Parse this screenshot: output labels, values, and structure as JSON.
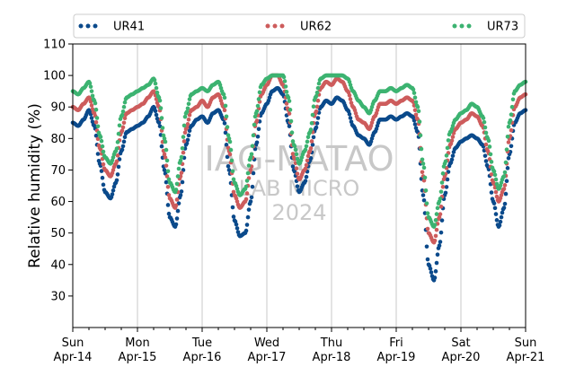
{
  "chart_data": {
    "type": "scatter",
    "title": "",
    "xlabel": "",
    "ylabel": "Relative humidity (%)",
    "ylim": [
      20,
      110
    ],
    "yticks": [
      30,
      40,
      50,
      60,
      70,
      80,
      90,
      100,
      110
    ],
    "xlim": [
      "2024-04-14",
      "2024-04-21"
    ],
    "xticks": [
      {
        "day": "Sun",
        "date": "Apr-14"
      },
      {
        "day": "Mon",
        "date": "Apr-15"
      },
      {
        "day": "Tue",
        "date": "Apr-16"
      },
      {
        "day": "Wed",
        "date": "Apr-17"
      },
      {
        "day": "Thu",
        "date": "Apr-18"
      },
      {
        "day": "Fri",
        "date": "Apr-19"
      },
      {
        "day": "Sat",
        "date": "Apr-20"
      },
      {
        "day": "Sun",
        "date": "Apr-21"
      }
    ],
    "grid": "vertical",
    "legend": "top",
    "watermark": [
      "IAG-MATAO",
      "LAB MICRO",
      "2024"
    ],
    "series": [
      {
        "name": "UR41",
        "color": "#0b4a8b",
        "points": [
          [
            "2024-04-14 00:00",
            85
          ],
          [
            "2024-04-14 02:00",
            84
          ],
          [
            "2024-04-14 04:00",
            86
          ],
          [
            "2024-04-14 06:00",
            89
          ],
          [
            "2024-04-14 08:00",
            84
          ],
          [
            "2024-04-14 10:00",
            72
          ],
          [
            "2024-04-14 12:00",
            63
          ],
          [
            "2024-04-14 14:00",
            61
          ],
          [
            "2024-04-14 16:00",
            66
          ],
          [
            "2024-04-14 18:00",
            76
          ],
          [
            "2024-04-14 20:00",
            82
          ],
          [
            "2024-04-14 22:00",
            83
          ],
          [
            "2024-04-15 00:00",
            84
          ],
          [
            "2024-04-15 02:00",
            85
          ],
          [
            "2024-04-15 04:00",
            87
          ],
          [
            "2024-04-15 06:00",
            90
          ],
          [
            "2024-04-15 08:00",
            85
          ],
          [
            "2024-04-15 10:00",
            70
          ],
          [
            "2024-04-15 12:00",
            55
          ],
          [
            "2024-04-15 14:00",
            52
          ],
          [
            "2024-04-15 16:00",
            62
          ],
          [
            "2024-04-15 18:00",
            78
          ],
          [
            "2024-04-15 20:00",
            84
          ],
          [
            "2024-04-15 22:00",
            86
          ],
          [
            "2024-04-16 00:00",
            87
          ],
          [
            "2024-04-16 02:00",
            85
          ],
          [
            "2024-04-16 04:00",
            88
          ],
          [
            "2024-04-16 06:00",
            89
          ],
          [
            "2024-04-16 08:00",
            86
          ],
          [
            "2024-04-16 10:00",
            70
          ],
          [
            "2024-04-16 12:00",
            54
          ],
          [
            "2024-04-16 14:00",
            49
          ],
          [
            "2024-04-16 16:00",
            50
          ],
          [
            "2024-04-16 18:00",
            60
          ],
          [
            "2024-04-16 20:00",
            78
          ],
          [
            "2024-04-16 22:00",
            88
          ],
          [
            "2024-04-17 00:00",
            91
          ],
          [
            "2024-04-17 02:00",
            95
          ],
          [
            "2024-04-17 04:00",
            96
          ],
          [
            "2024-04-17 06:00",
            94
          ],
          [
            "2024-04-17 08:00",
            85
          ],
          [
            "2024-04-17 10:00",
            70
          ],
          [
            "2024-04-17 12:00",
            63
          ],
          [
            "2024-04-17 14:00",
            66
          ],
          [
            "2024-04-17 16:00",
            73
          ],
          [
            "2024-04-17 18:00",
            83
          ],
          [
            "2024-04-17 20:00",
            90
          ],
          [
            "2024-04-17 22:00",
            92
          ],
          [
            "2024-04-18 00:00",
            91
          ],
          [
            "2024-04-18 02:00",
            93
          ],
          [
            "2024-04-18 04:00",
            92
          ],
          [
            "2024-04-18 06:00",
            89
          ],
          [
            "2024-04-18 08:00",
            84
          ],
          [
            "2024-04-18 10:00",
            81
          ],
          [
            "2024-04-18 12:00",
            80
          ],
          [
            "2024-04-18 14:00",
            78
          ],
          [
            "2024-04-18 16:00",
            82
          ],
          [
            "2024-04-18 18:00",
            86
          ],
          [
            "2024-04-18 20:00",
            86
          ],
          [
            "2024-04-18 22:00",
            87
          ],
          [
            "2024-04-19 00:00",
            86
          ],
          [
            "2024-04-19 02:00",
            87
          ],
          [
            "2024-04-19 04:00",
            88
          ],
          [
            "2024-04-19 06:00",
            87
          ],
          [
            "2024-04-19 08:00",
            82
          ],
          [
            "2024-04-19 10:00",
            62
          ],
          [
            "2024-04-19 12:00",
            40
          ],
          [
            "2024-04-19 14:00",
            35
          ],
          [
            "2024-04-19 16:00",
            46
          ],
          [
            "2024-04-19 18:00",
            62
          ],
          [
            "2024-04-19 20:00",
            72
          ],
          [
            "2024-04-19 22:00",
            77
          ],
          [
            "2024-04-20 00:00",
            79
          ],
          [
            "2024-04-20 02:00",
            80
          ],
          [
            "2024-04-20 04:00",
            81
          ],
          [
            "2024-04-20 06:00",
            80
          ],
          [
            "2024-04-20 08:00",
            78
          ],
          [
            "2024-04-20 10:00",
            71
          ],
          [
            "2024-04-20 12:00",
            60
          ],
          [
            "2024-04-20 14:00",
            52
          ],
          [
            "2024-04-20 16:00",
            58
          ],
          [
            "2024-04-20 18:00",
            75
          ],
          [
            "2024-04-20 20:00",
            85
          ],
          [
            "2024-04-20 22:00",
            88
          ],
          [
            "2024-04-21 00:00",
            89
          ]
        ]
      },
      {
        "name": "UR62",
        "color": "#cd5c5c",
        "points": [
          [
            "2024-04-14 00:00",
            90
          ],
          [
            "2024-04-14 02:00",
            89
          ],
          [
            "2024-04-14 04:00",
            91
          ],
          [
            "2024-04-14 06:00",
            93
          ],
          [
            "2024-04-14 08:00",
            88
          ],
          [
            "2024-04-14 10:00",
            77
          ],
          [
            "2024-04-14 12:00",
            70
          ],
          [
            "2024-04-14 14:00",
            68
          ],
          [
            "2024-04-14 16:00",
            72
          ],
          [
            "2024-04-14 18:00",
            82
          ],
          [
            "2024-04-14 20:00",
            88
          ],
          [
            "2024-04-14 22:00",
            89
          ],
          [
            "2024-04-15 00:00",
            90
          ],
          [
            "2024-04-15 02:00",
            91
          ],
          [
            "2024-04-15 04:00",
            93
          ],
          [
            "2024-04-15 06:00",
            95
          ],
          [
            "2024-04-15 08:00",
            90
          ],
          [
            "2024-04-15 10:00",
            75
          ],
          [
            "2024-04-15 12:00",
            61
          ],
          [
            "2024-04-15 14:00",
            58
          ],
          [
            "2024-04-15 16:00",
            68
          ],
          [
            "2024-04-15 18:00",
            83
          ],
          [
            "2024-04-15 20:00",
            89
          ],
          [
            "2024-04-15 22:00",
            90
          ],
          [
            "2024-04-16 00:00",
            92
          ],
          [
            "2024-04-16 02:00",
            90
          ],
          [
            "2024-04-16 04:00",
            93
          ],
          [
            "2024-04-16 06:00",
            94
          ],
          [
            "2024-04-16 08:00",
            90
          ],
          [
            "2024-04-16 10:00",
            76
          ],
          [
            "2024-04-16 12:00",
            62
          ],
          [
            "2024-04-16 14:00",
            58
          ],
          [
            "2024-04-16 16:00",
            60
          ],
          [
            "2024-04-16 18:00",
            70
          ],
          [
            "2024-04-16 20:00",
            85
          ],
          [
            "2024-04-16 22:00",
            94
          ],
          [
            "2024-04-17 00:00",
            97
          ],
          [
            "2024-04-17 02:00",
            100
          ],
          [
            "2024-04-17 04:00",
            100
          ],
          [
            "2024-04-17 06:00",
            97
          ],
          [
            "2024-04-17 08:00",
            89
          ],
          [
            "2024-04-17 10:00",
            74
          ],
          [
            "2024-04-17 12:00",
            67
          ],
          [
            "2024-04-17 14:00",
            70
          ],
          [
            "2024-04-17 16:00",
            76
          ],
          [
            "2024-04-17 18:00",
            88
          ],
          [
            "2024-04-17 20:00",
            96
          ],
          [
            "2024-04-17 22:00",
            98
          ],
          [
            "2024-04-18 00:00",
            97
          ],
          [
            "2024-04-18 02:00",
            99
          ],
          [
            "2024-04-18 04:00",
            98
          ],
          [
            "2024-04-18 06:00",
            95
          ],
          [
            "2024-04-18 08:00",
            90
          ],
          [
            "2024-04-18 10:00",
            86
          ],
          [
            "2024-04-18 12:00",
            85
          ],
          [
            "2024-04-18 14:00",
            83
          ],
          [
            "2024-04-18 16:00",
            87
          ],
          [
            "2024-04-18 18:00",
            91
          ],
          [
            "2024-04-18 20:00",
            91
          ],
          [
            "2024-04-18 22:00",
            92
          ],
          [
            "2024-04-19 00:00",
            91
          ],
          [
            "2024-04-19 02:00",
            92
          ],
          [
            "2024-04-19 04:00",
            93
          ],
          [
            "2024-04-19 06:00",
            92
          ],
          [
            "2024-04-19 08:00",
            86
          ],
          [
            "2024-04-19 10:00",
            68
          ],
          [
            "2024-04-19 12:00",
            50
          ],
          [
            "2024-04-19 14:00",
            47
          ],
          [
            "2024-04-19 16:00",
            55
          ],
          [
            "2024-04-19 18:00",
            68
          ],
          [
            "2024-04-19 20:00",
            78
          ],
          [
            "2024-04-19 22:00",
            83
          ],
          [
            "2024-04-20 00:00",
            85
          ],
          [
            "2024-04-20 02:00",
            86
          ],
          [
            "2024-04-20 04:00",
            88
          ],
          [
            "2024-04-20 06:00",
            87
          ],
          [
            "2024-04-20 08:00",
            84
          ],
          [
            "2024-04-20 10:00",
            76
          ],
          [
            "2024-04-20 12:00",
            66
          ],
          [
            "2024-04-20 14:00",
            60
          ],
          [
            "2024-04-20 16:00",
            64
          ],
          [
            "2024-04-20 18:00",
            80
          ],
          [
            "2024-04-20 20:00",
            90
          ],
          [
            "2024-04-20 22:00",
            93
          ],
          [
            "2024-04-21 00:00",
            94
          ]
        ]
      },
      {
        "name": "UR73",
        "color": "#3cb371",
        "points": [
          [
            "2024-04-14 00:00",
            95
          ],
          [
            "2024-04-14 02:00",
            94
          ],
          [
            "2024-04-14 04:00",
            96
          ],
          [
            "2024-04-14 06:00",
            98
          ],
          [
            "2024-04-14 08:00",
            92
          ],
          [
            "2024-04-14 10:00",
            81
          ],
          [
            "2024-04-14 12:00",
            74
          ],
          [
            "2024-04-14 14:00",
            72
          ],
          [
            "2024-04-14 16:00",
            76
          ],
          [
            "2024-04-14 18:00",
            87
          ],
          [
            "2024-04-14 20:00",
            93
          ],
          [
            "2024-04-14 22:00",
            94
          ],
          [
            "2024-04-15 00:00",
            95
          ],
          [
            "2024-04-15 02:00",
            96
          ],
          [
            "2024-04-15 04:00",
            97
          ],
          [
            "2024-04-15 06:00",
            99
          ],
          [
            "2024-04-15 08:00",
            93
          ],
          [
            "2024-04-15 10:00",
            80
          ],
          [
            "2024-04-15 12:00",
            66
          ],
          [
            "2024-04-15 14:00",
            63
          ],
          [
            "2024-04-15 16:00",
            73
          ],
          [
            "2024-04-15 18:00",
            88
          ],
          [
            "2024-04-15 20:00",
            94
          ],
          [
            "2024-04-15 22:00",
            95
          ],
          [
            "2024-04-16 00:00",
            96
          ],
          [
            "2024-04-16 02:00",
            95
          ],
          [
            "2024-04-16 04:00",
            97
          ],
          [
            "2024-04-16 06:00",
            98
          ],
          [
            "2024-04-16 08:00",
            94
          ],
          [
            "2024-04-16 10:00",
            80
          ],
          [
            "2024-04-16 12:00",
            66
          ],
          [
            "2024-04-16 14:00",
            62
          ],
          [
            "2024-04-16 16:00",
            64
          ],
          [
            "2024-04-16 18:00",
            74
          ],
          [
            "2024-04-16 20:00",
            88
          ],
          [
            "2024-04-16 22:00",
            97
          ],
          [
            "2024-04-17 00:00",
            99
          ],
          [
            "2024-04-17 02:00",
            100
          ],
          [
            "2024-04-17 04:00",
            100
          ],
          [
            "2024-04-17 06:00",
            100
          ],
          [
            "2024-04-17 08:00",
            93
          ],
          [
            "2024-04-17 10:00",
            78
          ],
          [
            "2024-04-17 12:00",
            72
          ],
          [
            "2024-04-17 14:00",
            76
          ],
          [
            "2024-04-17 16:00",
            82
          ],
          [
            "2024-04-17 18:00",
            93
          ],
          [
            "2024-04-17 20:00",
            99
          ],
          [
            "2024-04-17 22:00",
            100
          ],
          [
            "2024-04-18 00:00",
            100
          ],
          [
            "2024-04-18 02:00",
            100
          ],
          [
            "2024-04-18 04:00",
            100
          ],
          [
            "2024-04-18 06:00",
            99
          ],
          [
            "2024-04-18 08:00",
            95
          ],
          [
            "2024-04-18 10:00",
            92
          ],
          [
            "2024-04-18 12:00",
            90
          ],
          [
            "2024-04-18 14:00",
            88
          ],
          [
            "2024-04-18 16:00",
            92
          ],
          [
            "2024-04-18 18:00",
            95
          ],
          [
            "2024-04-18 20:00",
            95
          ],
          [
            "2024-04-18 22:00",
            96
          ],
          [
            "2024-04-19 00:00",
            95
          ],
          [
            "2024-04-19 02:00",
            96
          ],
          [
            "2024-04-19 04:00",
            97
          ],
          [
            "2024-04-19 06:00",
            96
          ],
          [
            "2024-04-19 08:00",
            90
          ],
          [
            "2024-04-19 10:00",
            72
          ],
          [
            "2024-04-19 12:00",
            55
          ],
          [
            "2024-04-19 14:00",
            52
          ],
          [
            "2024-04-19 16:00",
            60
          ],
          [
            "2024-04-19 18:00",
            72
          ],
          [
            "2024-04-19 20:00",
            82
          ],
          [
            "2024-04-19 22:00",
            86
          ],
          [
            "2024-04-20 00:00",
            88
          ],
          [
            "2024-04-20 02:00",
            89
          ],
          [
            "2024-04-20 04:00",
            91
          ],
          [
            "2024-04-20 06:00",
            90
          ],
          [
            "2024-04-20 08:00",
            87
          ],
          [
            "2024-04-20 10:00",
            80
          ],
          [
            "2024-04-20 12:00",
            70
          ],
          [
            "2024-04-20 14:00",
            64
          ],
          [
            "2024-04-20 16:00",
            68
          ],
          [
            "2024-04-20 18:00",
            85
          ],
          [
            "2024-04-20 20:00",
            95
          ],
          [
            "2024-04-20 22:00",
            97
          ],
          [
            "2024-04-21 00:00",
            98
          ]
        ]
      }
    ]
  }
}
